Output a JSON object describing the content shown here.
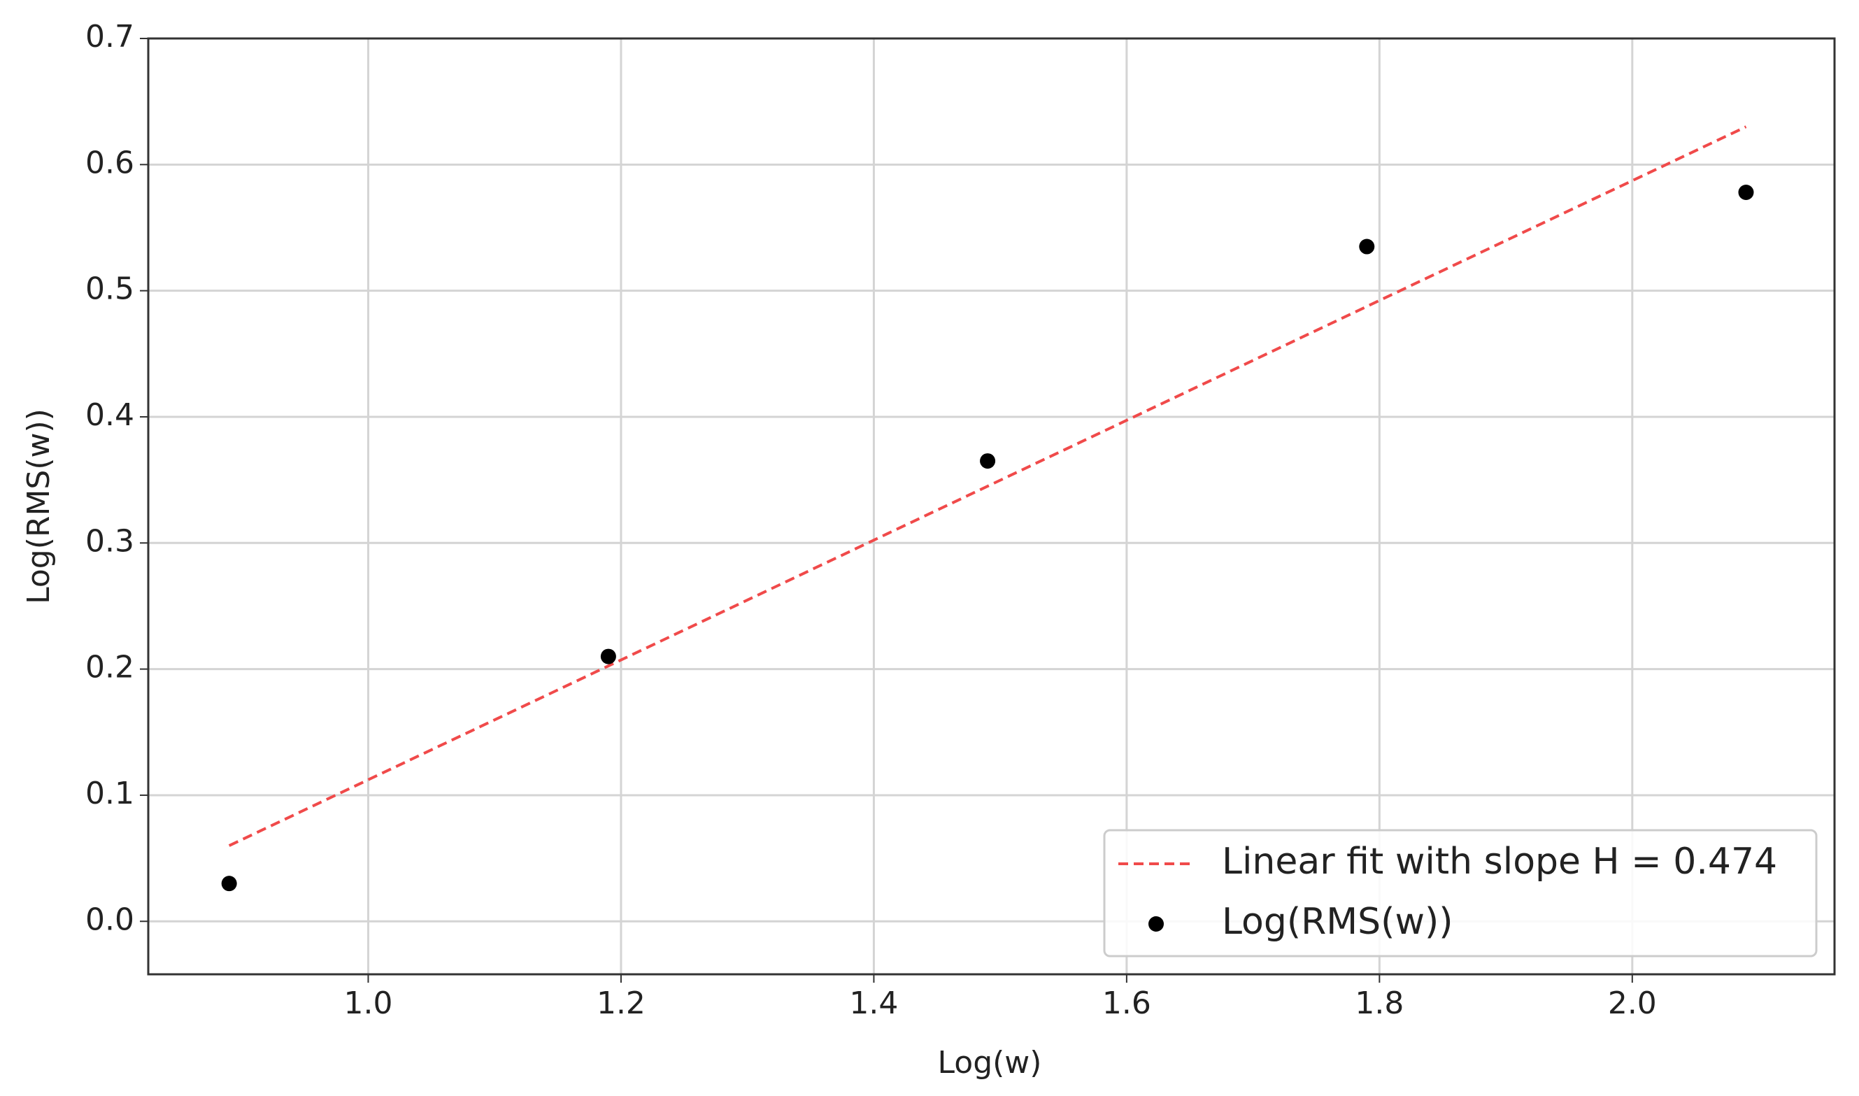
{
  "chart_data": {
    "type": "scatter",
    "xlabel": "Log(w)",
    "ylabel": "Log(RMS(w))",
    "xlim": [
      0.826,
      2.16
    ],
    "ylim": [
      -0.042,
      0.7
    ],
    "xticks": [
      {
        "value": 1.0,
        "label": "1.0"
      },
      1.2,
      1.4,
      1.6,
      1.8,
      {
        "value": 2.0,
        "label": "2.0"
      }
    ],
    "yticks": [
      {
        "value": 0.0,
        "label": "0.0"
      },
      0.1,
      0.2,
      0.3,
      0.4,
      0.5,
      0.6,
      0.7
    ],
    "grid": true,
    "legend": "lower right",
    "series": [
      {
        "name": "Linear fit with slope H = 0.474",
        "type": "line",
        "color": "#f04a4a",
        "dashed": true,
        "x": [
          0.89,
          2.09
        ],
        "values": [
          0.06,
          0.63
        ]
      },
      {
        "name": "Log(RMS(w))",
        "type": "scatter",
        "color": "#000000",
        "x": [
          0.89,
          1.19,
          1.49,
          1.79,
          2.09
        ],
        "values": [
          0.03,
          0.21,
          0.365,
          0.535,
          0.578
        ]
      }
    ]
  }
}
